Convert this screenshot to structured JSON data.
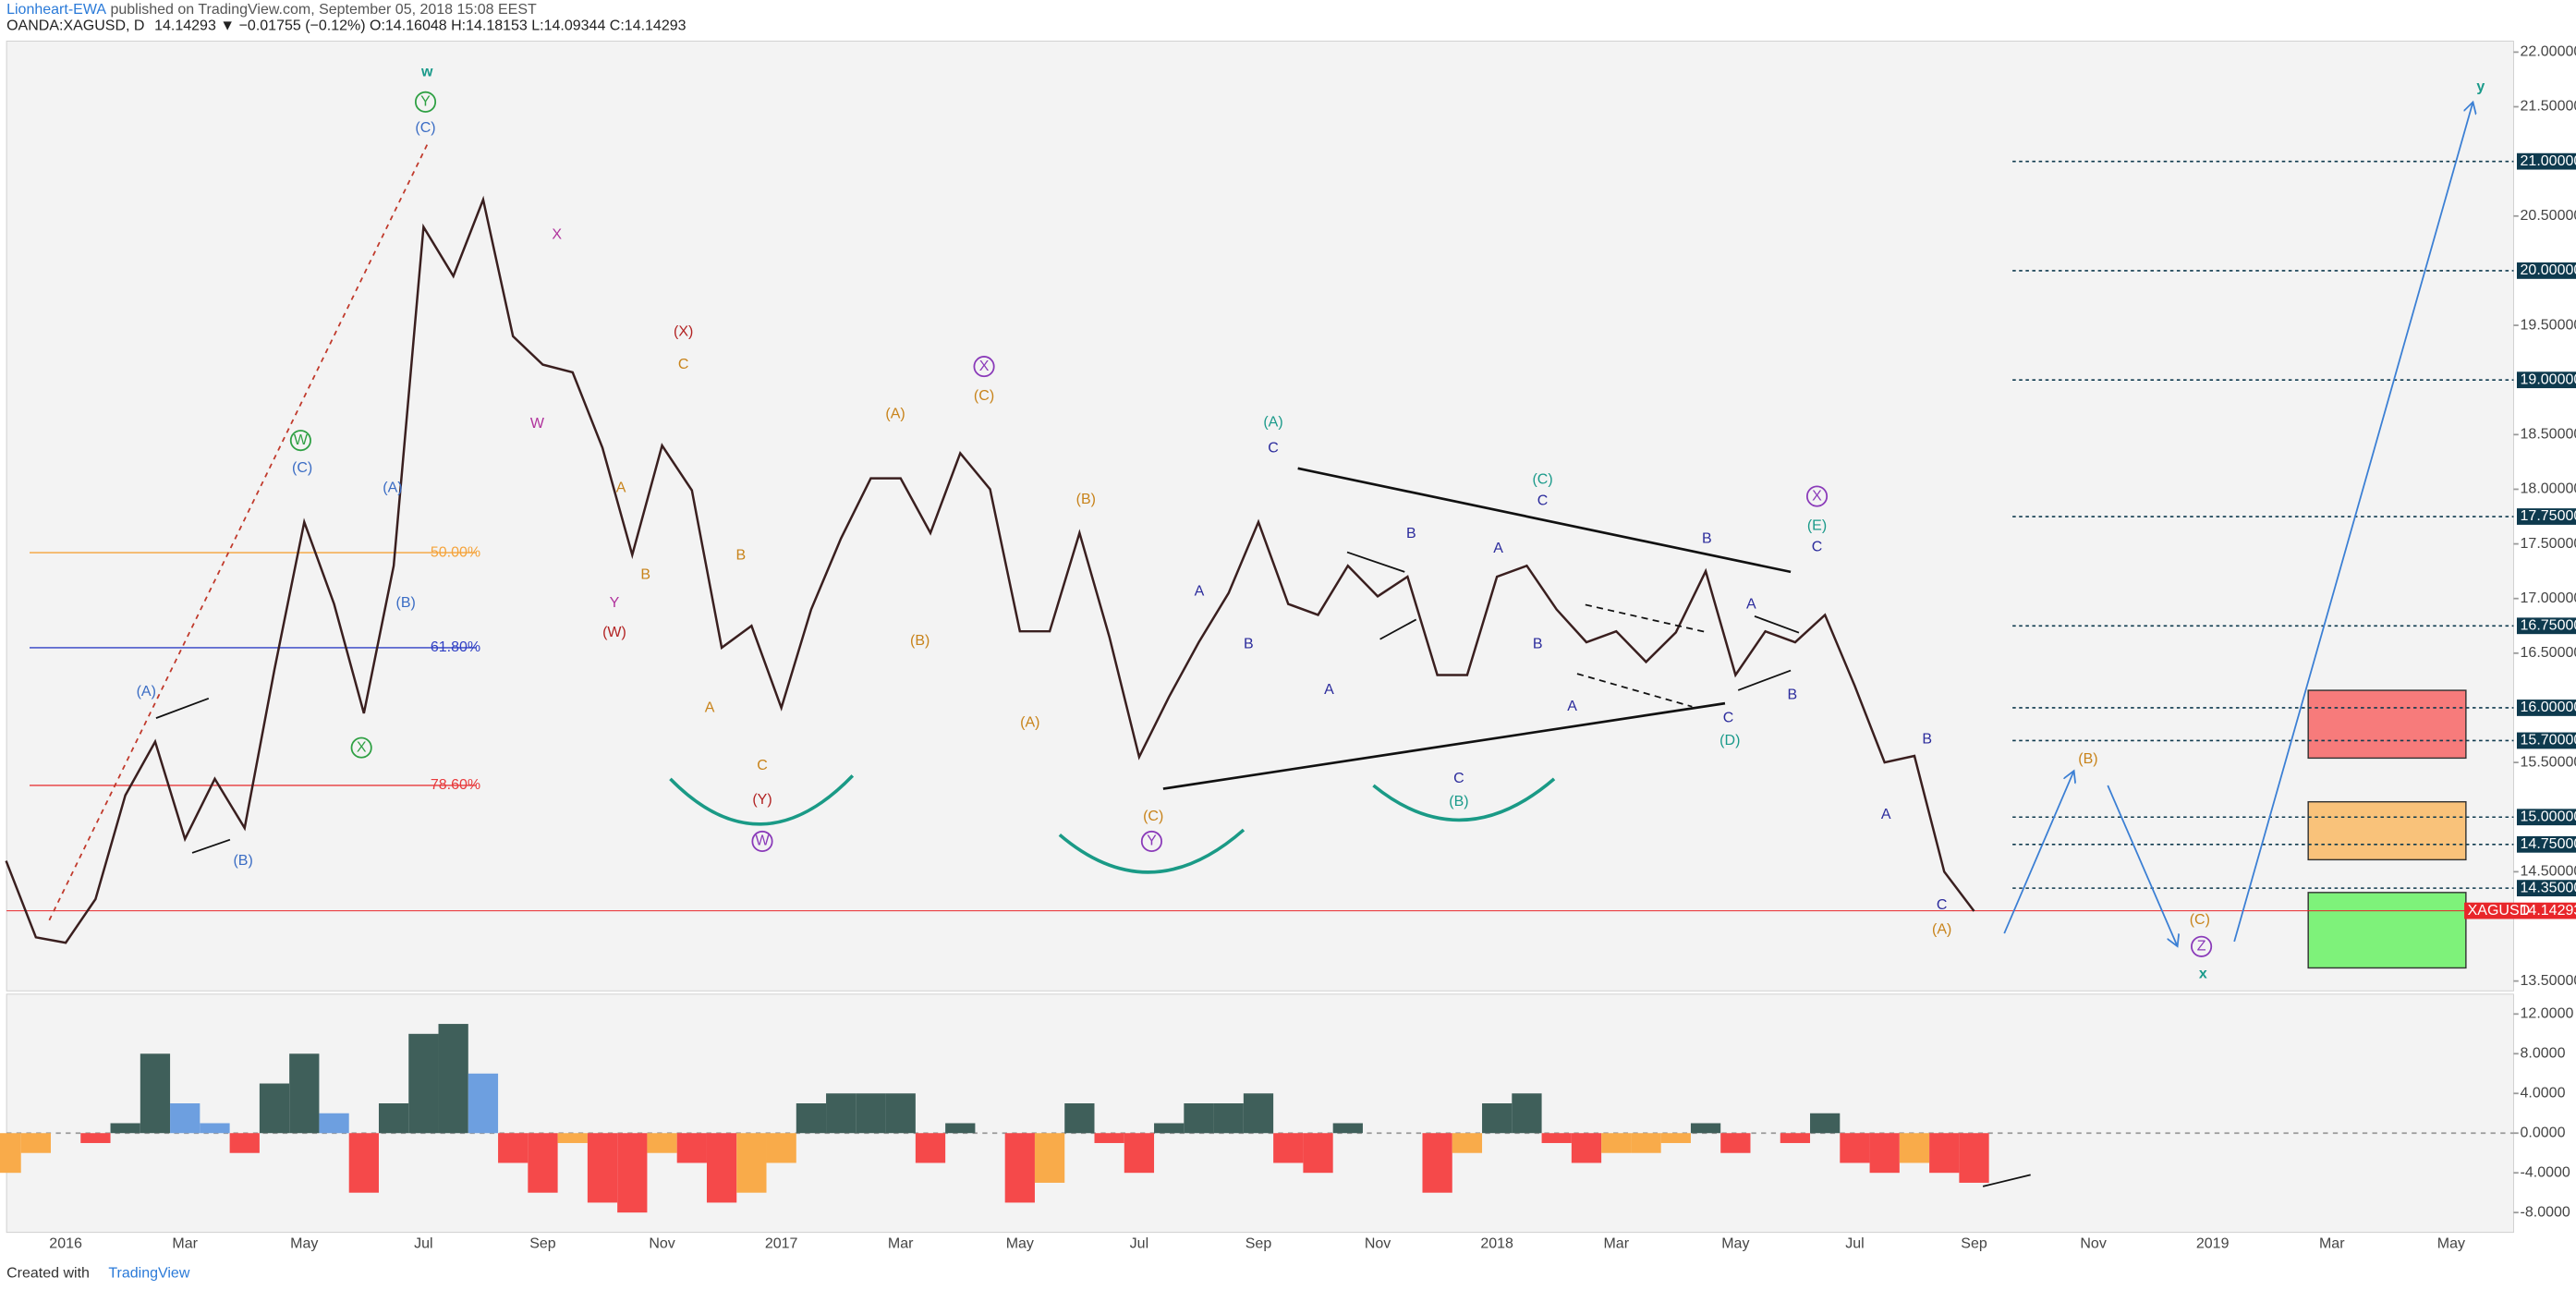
{
  "header": {
    "author": "Lionheart-EWA",
    "published": " published on TradingView.com, September 05, 2018 15:08 EEST",
    "symbol_line": "OANDA:XAGUSD, D",
    "quote": "14.14293 ▼ −0.01755 (−0.12%) O:14.16048 H:14.18153 L:14.09344 C:14.14293"
  },
  "chart_data": [
    {
      "type": "line",
      "symbol": "XAGUSD",
      "last_price": 14.14293,
      "last_price_color": "#e8262a",
      "ylim": [
        13.41,
        22.1
      ],
      "yticks": [
        {
          "value": 22,
          "label": "22.00000"
        },
        {
          "value": 21.5,
          "label": "21.50000"
        },
        {
          "value": 20.5,
          "label": "20.50000"
        },
        {
          "value": 19.5,
          "label": "19.50000"
        },
        {
          "value": 18.5,
          "label": "18.50000"
        },
        {
          "value": 18,
          "label": "18.00000"
        },
        {
          "value": 17.5,
          "label": "17.50000"
        },
        {
          "value": 17,
          "label": "17.00000"
        },
        {
          "value": 16.5,
          "label": "16.50000"
        },
        {
          "value": 15.5,
          "label": "15.50000"
        },
        {
          "value": 14.5,
          "label": "14.50000"
        },
        {
          "value": 13.5,
          "label": "13.50000"
        }
      ],
      "levels": [
        {
          "value": 21,
          "label": "21.00000"
        },
        {
          "value": 20,
          "label": "20.00000"
        },
        {
          "value": 19,
          "label": "19.00000"
        },
        {
          "value": 17.75,
          "label": "17.75000"
        },
        {
          "value": 16.75,
          "label": "16.75000"
        },
        {
          "value": 16,
          "label": "16.00000"
        },
        {
          "value": 15.7,
          "label": "15.70000"
        },
        {
          "value": 15,
          "label": "15.00000"
        },
        {
          "value": 14.75,
          "label": "14.75000"
        },
        {
          "value": 14.35,
          "label": "14.35000"
        }
      ],
      "level_color": "#0e3a4e",
      "xticks": [
        "2016",
        "Mar",
        "May",
        "Jul",
        "Sep",
        "Nov",
        "2017",
        "Mar",
        "May",
        "Jul",
        "Sep",
        "Nov",
        "2018",
        "Mar",
        "May",
        "Jul",
        "Sep",
        "Nov",
        "2019",
        "Mar",
        "May"
      ],
      "series": [
        {
          "color": "#3a1f1f",
          "values": [
            14.6,
            13.9,
            13.85,
            14.25,
            15.2,
            15.69,
            14.8,
            15.35,
            14.9,
            16.35,
            17.7,
            16.95,
            15.95,
            17.3,
            20.4,
            19.95,
            20.65,
            19.4,
            19.14,
            19.07,
            18.38,
            17.4,
            18.4,
            17.99,
            16.55,
            16.75,
            16.0,
            16.9,
            17.55,
            18.1,
            18.1,
            17.6,
            18.33,
            18.0,
            16.7,
            16.7,
            17.6,
            16.65,
            15.55,
            16.1,
            16.6,
            17.05,
            17.7,
            16.95,
            16.85,
            17.3,
            17.02,
            17.2,
            16.3,
            16.3,
            17.2,
            17.3,
            16.9,
            16.6,
            16.7,
            16.42,
            16.69,
            17.25,
            16.3,
            16.7,
            16.6,
            16.85,
            16.2,
            15.5,
            15.56,
            14.5,
            14.14
          ]
        }
      ],
      "fib_levels": [
        {
          "label": "50.00%",
          "price": 17.42,
          "color": "#f5a33a"
        },
        {
          "label": "61.80%",
          "price": 16.55,
          "color": "#2f3fc4"
        },
        {
          "label": "78.60%",
          "price": 15.29,
          "color": "#e8393b"
        }
      ],
      "zones": [
        {
          "values": [
            16.16,
            15.54
          ],
          "color": "#f77b7b"
        },
        {
          "values": [
            15.14,
            14.61
          ],
          "color": "#f9c27a"
        },
        {
          "values": [
            14.31,
            13.62
          ],
          "color": "#7ef27a"
        }
      ],
      "annotations": [
        "w",
        "Y",
        "(C)",
        "W",
        "(C)",
        "(A)",
        "(B)",
        "X",
        "(A)",
        "(B)",
        "X",
        "W",
        "Y",
        "(W)",
        "(X)",
        "C",
        "A",
        "B",
        "B",
        "A",
        "C",
        "(Y)",
        "W",
        "(A)",
        "(B)",
        "X",
        "(C)",
        "(B)",
        "(A)",
        "(C)",
        "Y",
        "(A)",
        "C",
        "A",
        "B",
        "A",
        "B",
        "C",
        "(B)",
        "(C)",
        "C",
        "A",
        "B",
        "A",
        "B",
        "A",
        "C",
        "(D)",
        "B",
        "X",
        "(E)",
        "C",
        "B",
        "A",
        "C",
        "(A)",
        "(B)",
        "(C)",
        "Z",
        "x",
        "y"
      ]
    },
    {
      "type": "bar",
      "ylim": [
        -10,
        14
      ],
      "yticks": [
        {
          "value": 12,
          "label": "12.0000"
        },
        {
          "value": 8,
          "label": "8.0000"
        },
        {
          "value": 4,
          "label": "4.0000"
        },
        {
          "value": 0,
          "label": "0.0000"
        },
        {
          "value": -4,
          "label": "-4.0000"
        },
        {
          "value": -8,
          "label": "-8.0000"
        }
      ],
      "colors": [
        "#3f5f5a",
        "#6d9fe0",
        "#f5494a",
        "#f9ab4a"
      ],
      "values": [
        -4,
        -2,
        0,
        -1,
        1,
        8,
        3,
        1,
        -2,
        5,
        8,
        2,
        -6,
        3,
        10,
        11,
        6,
        -3,
        -6,
        -1,
        -7,
        -8,
        -2,
        -3,
        -7,
        -6,
        -3,
        3,
        4,
        4,
        4,
        -3,
        1,
        0,
        -7,
        -5,
        3,
        -1,
        -4,
        1,
        3,
        3,
        4,
        -3,
        -4,
        1,
        0,
        0,
        -6,
        -2,
        3,
        4,
        -1,
        -3,
        -2,
        -2,
        -1,
        1,
        -2,
        0,
        -1,
        2,
        -3,
        -4,
        -3,
        -4,
        -5
      ]
    }
  ],
  "footer": {
    "created": "Created with",
    "brand": "TradingView"
  }
}
